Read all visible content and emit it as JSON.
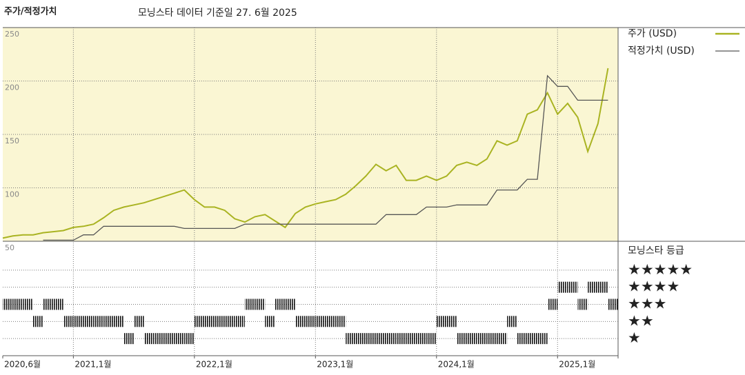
{
  "chart_data": {
    "type": "line",
    "title": "주가/적정가치",
    "subtitle": "모닝스타 데이터 기준일 27. 6월 2025",
    "x": [
      "2020-06",
      "2020-07",
      "2020-08",
      "2020-09",
      "2020-10",
      "2020-11",
      "2020-12",
      "2021-01",
      "2021-02",
      "2021-03",
      "2021-04",
      "2021-05",
      "2021-06",
      "2021-07",
      "2021-08",
      "2021-09",
      "2021-10",
      "2021-11",
      "2021-12",
      "2022-01",
      "2022-02",
      "2022-03",
      "2022-04",
      "2022-05",
      "2022-06",
      "2022-07",
      "2022-08",
      "2022-09",
      "2022-10",
      "2022-11",
      "2022-12",
      "2023-01",
      "2023-02",
      "2023-03",
      "2023-04",
      "2023-05",
      "2023-06",
      "2023-07",
      "2023-08",
      "2023-09",
      "2023-10",
      "2023-11",
      "2023-12",
      "2024-01",
      "2024-02",
      "2024-03",
      "2024-04",
      "2024-05",
      "2024-06",
      "2024-07",
      "2024-08",
      "2024-09",
      "2024-10",
      "2024-11",
      "2024-12",
      "2025-01",
      "2025-02",
      "2025-03",
      "2025-04",
      "2025-05",
      "2025-06"
    ],
    "xlim": [
      "2020-06",
      "2025-07"
    ],
    "xticks": [
      {
        "value": "2020-06",
        "label": "2020,6월"
      },
      {
        "value": "2021-01",
        "label": "2021,1월"
      },
      {
        "value": "2022-01",
        "label": "2022,1월"
      },
      {
        "value": "2023-01",
        "label": "2023,1월"
      },
      {
        "value": "2024-01",
        "label": "2024,1월"
      },
      {
        "value": "2025-01",
        "label": "2025,1월"
      }
    ],
    "ylim": [
      50,
      250
    ],
    "yticks": [
      50,
      100,
      150,
      200,
      250
    ],
    "grid": true,
    "background": "#faf6d3",
    "series": [
      {
        "name": "주가 (USD)",
        "color": "#a9b321",
        "values": [
          53,
          55,
          56,
          56,
          58,
          59,
          60,
          63,
          64,
          66,
          72,
          79,
          82,
          84,
          86,
          89,
          92,
          95,
          98,
          89,
          82,
          82,
          79,
          71,
          68,
          73,
          75,
          69,
          63,
          76,
          82,
          85,
          87,
          89,
          94,
          102,
          111,
          122,
          116,
          121,
          107,
          107,
          111,
          107,
          111,
          121,
          124,
          121,
          127,
          144,
          140,
          144,
          169,
          173,
          189,
          169,
          179,
          166,
          134,
          160,
          212
        ]
      },
      {
        "name": "적정가치 (USD)",
        "color": "#555555",
        "values": [
          null,
          null,
          null,
          null,
          51,
          51,
          51,
          51,
          56,
          56,
          64,
          64,
          64,
          64,
          64,
          64,
          64,
          64,
          62,
          62,
          62,
          62,
          62,
          62,
          66,
          66,
          66,
          66,
          66,
          66,
          66,
          66,
          66,
          66,
          66,
          66,
          66,
          66,
          75,
          75,
          75,
          75,
          82,
          82,
          82,
          84,
          84,
          84,
          84,
          98,
          98,
          98,
          108,
          108,
          205,
          195,
          195,
          182,
          182,
          182,
          182
        ]
      }
    ],
    "rating_title": "모닝스타 등급",
    "rating_lim": [
      0,
      6
    ],
    "rating_ticks": [
      {
        "value": 5,
        "label": "★★★★★"
      },
      {
        "value": 4,
        "label": "★★★★"
      },
      {
        "value": 3,
        "label": "★★★"
      },
      {
        "value": 2,
        "label": "★★"
      },
      {
        "value": 1,
        "label": "★"
      }
    ],
    "rating_values": [
      3,
      3,
      3,
      2,
      3,
      3,
      2,
      2,
      2,
      2,
      2,
      2,
      1,
      2,
      1,
      1,
      1,
      1,
      1,
      2,
      2,
      2,
      2,
      2,
      3,
      3,
      2,
      3,
      3,
      2,
      2,
      2,
      2,
      2,
      1,
      1,
      1,
      1,
      1,
      1,
      1,
      1,
      1,
      2,
      2,
      1,
      1,
      1,
      1,
      1,
      2,
      1,
      1,
      1,
      3,
      4,
      4,
      3,
      4,
      4,
      3
    ]
  }
}
